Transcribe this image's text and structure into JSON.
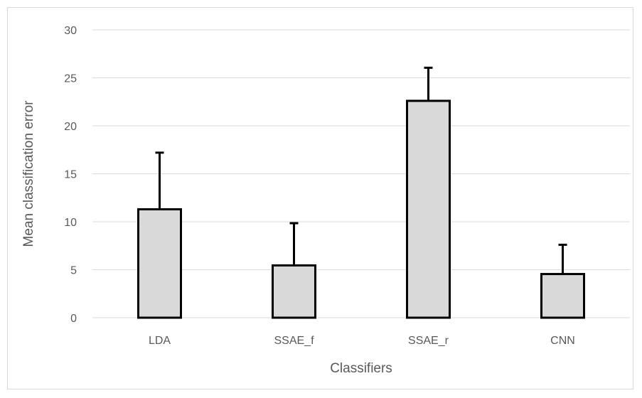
{
  "chart_data": {
    "type": "bar",
    "categories": [
      "LDA",
      "SSAE_f",
      "SSAE_r",
      "CNN"
    ],
    "values": [
      11.3,
      5.45,
      22.6,
      4.55
    ],
    "error_bars_upper": [
      5.9,
      4.4,
      3.45,
      3.05
    ],
    "xlabel": "Classifiers",
    "ylabel": "Mean classification error",
    "ylim": [
      0,
      30
    ],
    "yticks": [
      "0",
      "5",
      "10",
      "15",
      "20",
      "25",
      "30"
    ],
    "grid": true,
    "bar_fill": "#d9d9d9",
    "bar_stroke": "#000000",
    "grid_color": "#d9d9d9"
  }
}
